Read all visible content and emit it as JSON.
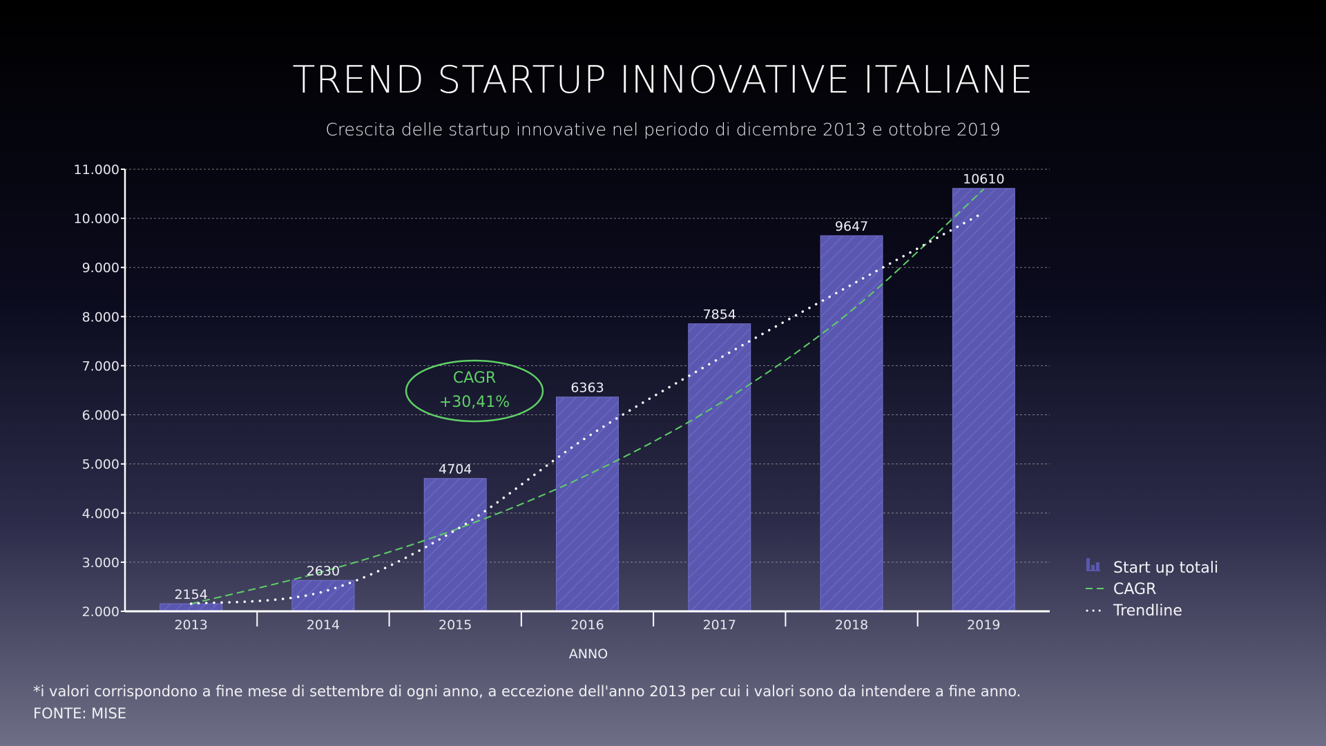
{
  "title": "TREND STARTUP INNOVATIVE ITALIANE",
  "subtitle": "Crescita delle startup innovative nel periodo di dicembre 2013 e ottobre 2019",
  "footnote": "*i valori corrispondono a fine mese di settembre di ogni anno, a eccezione dell'anno 2013 per cui i valori sono da intendere a fine anno.",
  "source": "FONTE: MISE",
  "cagr_callout": {
    "label": "CAGR",
    "value": "+30,41%"
  },
  "colors": {
    "bar": "#5a57b0",
    "cagr": "#5fd066",
    "trendline": "#ffffff",
    "grid": "#aaaaaa",
    "axis": "#ffffff"
  },
  "chart_data": {
    "type": "bar",
    "xlabel": "ANNO",
    "ylabel": "",
    "categories": [
      "2013",
      "2014",
      "2015",
      "2016",
      "2017",
      "2018",
      "2019"
    ],
    "series": [
      {
        "name": "Start up totali",
        "type": "bar",
        "values": [
          2154,
          2630,
          4704,
          6363,
          7854,
          9647,
          10610
        ]
      },
      {
        "name": "CAGR",
        "type": "line",
        "style": "dashed",
        "values": [
          2154,
          2809,
          3663,
          4777,
          6229,
          8124,
          10594
        ]
      },
      {
        "name": "Trendline",
        "type": "line",
        "style": "dotted",
        "values": [
          2154,
          2400,
          3650,
          5550,
          7150,
          8650,
          10120
        ]
      }
    ],
    "data_labels": [
      "2154",
      "2630",
      "4704",
      "6363",
      "7854",
      "9647",
      "10610"
    ],
    "ylim": [
      2000,
      11000
    ],
    "yticks": [
      2000,
      3000,
      4000,
      5000,
      6000,
      7000,
      8000,
      9000,
      10000,
      11000
    ],
    "ytick_labels": [
      "2.000",
      "3.000",
      "4.000",
      "5.000",
      "6.000",
      "7.000",
      "8.000",
      "9.000",
      "10.000",
      "11.000"
    ],
    "grid": true,
    "legend": "right"
  }
}
